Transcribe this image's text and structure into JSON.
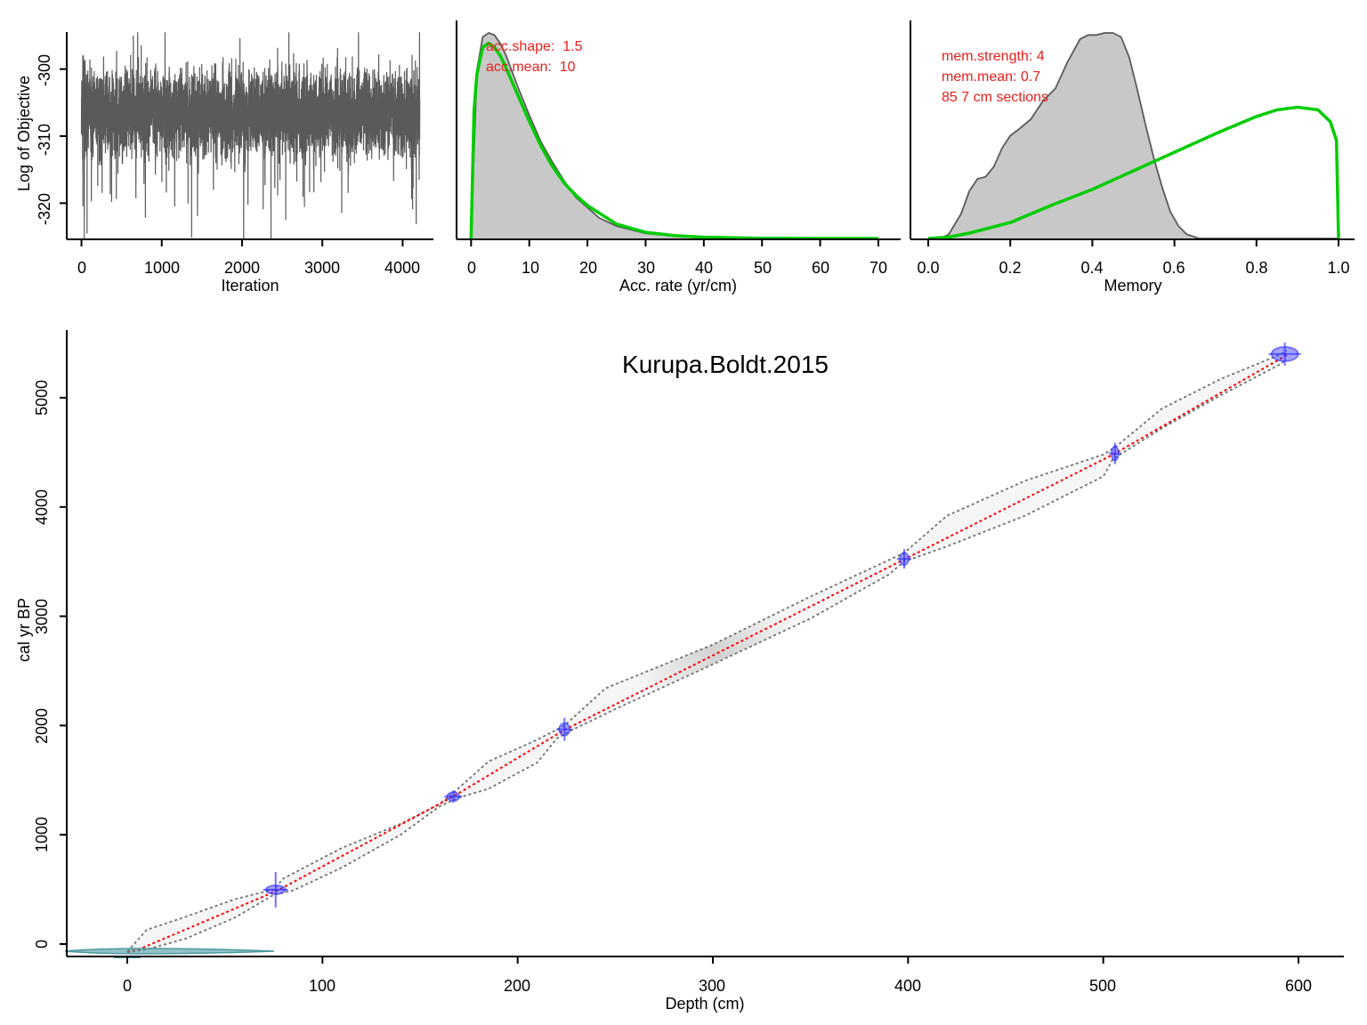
{
  "figure_title": "Kurupa.Boldt.2015",
  "colors": {
    "trace": "#5a5a5a",
    "posterior_fill": "#c8c8c8",
    "posterior_line": "#5a5a5a",
    "prior": "#00cc00",
    "annotation": "#e8201c",
    "age_model_mean": "#ff0000",
    "confidence_bounds": "#707070",
    "dates": "#3333ff",
    "surface_date": "#4a9aa0"
  },
  "chart_data": [
    {
      "type": "line",
      "title": "",
      "xlabel": "Iteration",
      "ylabel": "Log of Objective",
      "xlim": [
        -150,
        4350
      ],
      "ylim": [
        -326,
        -294.5
      ],
      "xticks": [
        "0",
        "1000",
        "2000",
        "3000",
        "4000"
      ],
      "yticks": [
        "-300",
        "-310",
        "-320"
      ],
      "series": [
        {
          "values_summary": "MCMC trace of 4215 iterations fluctuating mostly between -315 and -298, occasional dips to -327",
          "n_iterations": 4215,
          "typical_range": [
            -315,
            -298
          ],
          "min": -327,
          "max": -294.5
        }
      ]
    },
    {
      "type": "area",
      "title": "",
      "xlabel": "Acc. rate (yr/cm)",
      "ylabel": "",
      "xlim": [
        -2.5,
        72
      ],
      "xticks": [
        "0",
        "10",
        "20",
        "30",
        "40",
        "50",
        "60",
        "70"
      ],
      "annotations": [
        "acc.shape:  1.5",
        "acc.mean:  10"
      ],
      "series": [
        {
          "role": "posterior",
          "x": [
            0,
            1,
            2,
            3,
            4,
            5,
            6,
            8,
            10,
            12,
            14,
            16,
            18,
            20,
            22,
            25,
            30,
            35,
            40,
            50,
            60,
            70
          ],
          "y": [
            0.03,
            0.82,
            0.98,
            1.0,
            0.99,
            0.95,
            0.89,
            0.74,
            0.6,
            0.47,
            0.37,
            0.28,
            0.2,
            0.15,
            0.1,
            0.06,
            0.025,
            0.012,
            0.006,
            0.002,
            0.001,
            0.0
          ]
        },
        {
          "role": "prior",
          "shape": 1.5,
          "mean": 10,
          "x": [
            0,
            0.5,
            1,
            2,
            3,
            4,
            5,
            6,
            8,
            10,
            12,
            14,
            16,
            18,
            20,
            25,
            30,
            35,
            40,
            50,
            60,
            70
          ],
          "y": [
            0.0,
            0.62,
            0.8,
            0.93,
            0.95,
            0.93,
            0.89,
            0.83,
            0.7,
            0.57,
            0.45,
            0.35,
            0.27,
            0.21,
            0.16,
            0.07,
            0.03,
            0.014,
            0.006,
            0.001,
            0.0,
            0.0
          ]
        }
      ]
    },
    {
      "type": "area",
      "title": "",
      "xlabel": "Memory",
      "ylabel": "",
      "xlim": [
        -0.04,
        1.04
      ],
      "xticks": [
        "0.0",
        "0.2",
        "0.4",
        "0.6",
        "0.8",
        "1.0"
      ],
      "annotations": [
        "mem.strength: 4",
        "mem.mean: 0.7",
        "85 7 cm sections"
      ],
      "series": [
        {
          "role": "posterior",
          "x": [
            0.0,
            0.03,
            0.05,
            0.08,
            0.1,
            0.12,
            0.14,
            0.16,
            0.18,
            0.2,
            0.22,
            0.25,
            0.28,
            0.31,
            0.34,
            0.37,
            0.39,
            0.41,
            0.43,
            0.45,
            0.47,
            0.49,
            0.51,
            0.53,
            0.55,
            0.57,
            0.59,
            0.61,
            0.63,
            0.66,
            0.7,
            0.8,
            1.0
          ],
          "y": [
            0.0,
            0.0,
            0.02,
            0.12,
            0.23,
            0.29,
            0.3,
            0.35,
            0.44,
            0.5,
            0.53,
            0.58,
            0.67,
            0.73,
            0.86,
            0.97,
            0.99,
            0.99,
            1.0,
            1.0,
            0.98,
            0.88,
            0.72,
            0.55,
            0.39,
            0.25,
            0.13,
            0.06,
            0.02,
            0.0,
            0.0,
            0.0,
            0.0
          ]
        },
        {
          "role": "prior",
          "strength": 4,
          "mean": 0.7,
          "x": [
            0.0,
            0.05,
            0.1,
            0.2,
            0.3,
            0.4,
            0.5,
            0.6,
            0.7,
            0.8,
            0.85,
            0.9,
            0.95,
            0.98,
            0.995,
            1.0
          ],
          "y": [
            0.0,
            0.01,
            0.04,
            0.12,
            0.25,
            0.37,
            0.51,
            0.65,
            0.79,
            0.92,
            0.97,
            0.99,
            0.97,
            0.88,
            0.74,
            0.0
          ]
        }
      ]
    },
    {
      "type": "line",
      "title": "Kurupa.Boldt.2015",
      "xlabel": "Depth (cm)",
      "ylabel": "cal yr BP",
      "xlim": [
        -30,
        625
      ],
      "ylim": [
        -120,
        5620
      ],
      "xticks": [
        "0",
        "100",
        "200",
        "300",
        "400",
        "500",
        "600"
      ],
      "yticks": [
        "0",
        "1000",
        "2000",
        "3000",
        "4000",
        "5000"
      ],
      "series": [
        {
          "name": "",
          "role": "mean age",
          "x": [
            0,
            5,
            77,
            167,
            224,
            398,
            505,
            594
          ],
          "y": [
            -70,
            -55,
            490,
            1350,
            1960,
            3520,
            4480,
            5390
          ]
        },
        {
          "role": "lower 95% bound",
          "x": [
            0,
            10,
            30,
            55,
            75,
            85,
            110,
            140,
            160,
            170,
            185,
            210,
            220,
            228,
            250,
            300,
            350,
            390,
            398,
            420,
            460,
            500,
            505,
            530,
            560,
            590,
            594
          ],
          "y": [
            -75,
            -50,
            50,
            240,
            450,
            490,
            700,
            1000,
            1260,
            1340,
            1420,
            1660,
            1880,
            1960,
            2150,
            2560,
            2980,
            3380,
            3500,
            3640,
            3920,
            4280,
            4440,
            4720,
            5020,
            5300,
            5350
          ]
        },
        {
          "role": "upper 95% bound",
          "x": [
            0,
            10,
            30,
            55,
            75,
            80,
            110,
            140,
            160,
            168,
            185,
            210,
            224,
            245,
            300,
            350,
            380,
            398,
            420,
            460,
            500,
            507,
            530,
            560,
            590,
            594
          ],
          "y": [
            -70,
            130,
            250,
            410,
            500,
            600,
            880,
            1100,
            1280,
            1400,
            1670,
            1870,
            2000,
            2340,
            2740,
            3180,
            3430,
            3580,
            3920,
            4240,
            4480,
            4560,
            4900,
            5170,
            5390,
            5430
          ]
        },
        {
          "role": "calibrated dates",
          "x": [
            76,
            167,
            224,
            398,
            506,
            593
          ],
          "y": [
            497,
            1350,
            1965,
            3525,
            4490,
            5400
          ]
        },
        {
          "role": "surface date",
          "x": [
            0
          ],
          "y": [
            -65
          ]
        }
      ]
    }
  ]
}
